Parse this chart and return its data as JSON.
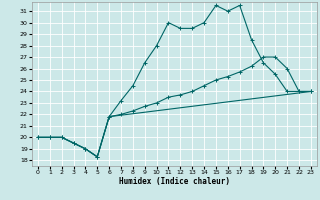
{
  "xlabel": "Humidex (Indice chaleur)",
  "xlim": [
    -0.5,
    23.5
  ],
  "ylim": [
    17.5,
    31.8
  ],
  "yticks": [
    18,
    19,
    20,
    21,
    22,
    23,
    24,
    25,
    26,
    27,
    28,
    29,
    30,
    31
  ],
  "xticks": [
    0,
    1,
    2,
    3,
    4,
    5,
    6,
    7,
    8,
    9,
    10,
    11,
    12,
    13,
    14,
    15,
    16,
    17,
    18,
    19,
    20,
    21,
    22,
    23
  ],
  "bg_color": "#cce8e8",
  "grid_color": "#ffffff",
  "line_color": "#006666",
  "line1_x": [
    0,
    1,
    2,
    3,
    4,
    5,
    6,
    7,
    8,
    9,
    10,
    11,
    12,
    13,
    14,
    15,
    16,
    17,
    18,
    19,
    20,
    21,
    22,
    23
  ],
  "line1_y": [
    20,
    20,
    20,
    19.5,
    19,
    18.3,
    21.8,
    23.2,
    24.5,
    26.5,
    28.0,
    30.0,
    29.5,
    29.5,
    30.0,
    31.5,
    31.0,
    31.5,
    28.5,
    26.5,
    25.5,
    24.0,
    24.0,
    24.0
  ],
  "line2_x": [
    0,
    1,
    2,
    3,
    4,
    5,
    6,
    7,
    8,
    9,
    10,
    11,
    12,
    13,
    14,
    15,
    16,
    17,
    18,
    19,
    20,
    21,
    22,
    23
  ],
  "line2_y": [
    20,
    20,
    20,
    19.5,
    19,
    18.3,
    21.8,
    22.0,
    22.3,
    22.7,
    23.0,
    23.5,
    23.7,
    24.0,
    24.5,
    25.0,
    25.3,
    25.7,
    26.2,
    27.0,
    27.0,
    26.0,
    24.0,
    24.0
  ],
  "line3_x": [
    0,
    1,
    2,
    3,
    4,
    5,
    6,
    23
  ],
  "line3_y": [
    20,
    20,
    20,
    19.5,
    19,
    18.3,
    21.8,
    24.0
  ]
}
